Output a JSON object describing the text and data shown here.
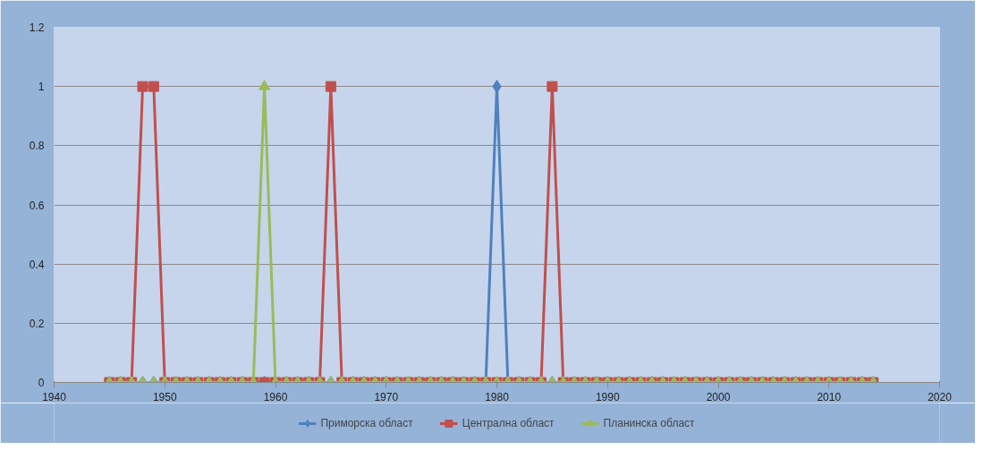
{
  "chart_data": {
    "type": "line",
    "x": [
      1945,
      1946,
      1947,
      1948,
      1949,
      1950,
      1951,
      1952,
      1953,
      1954,
      1955,
      1956,
      1957,
      1958,
      1959,
      1960,
      1961,
      1962,
      1963,
      1964,
      1965,
      1966,
      1967,
      1968,
      1969,
      1970,
      1971,
      1972,
      1973,
      1974,
      1975,
      1976,
      1977,
      1978,
      1979,
      1980,
      1981,
      1982,
      1983,
      1984,
      1985,
      1986,
      1987,
      1988,
      1989,
      1990,
      1991,
      1992,
      1993,
      1994,
      1995,
      1996,
      1997,
      1998,
      1999,
      2000,
      2001,
      2002,
      2003,
      2004,
      2005,
      2006,
      2007,
      2008,
      2009,
      2010,
      2011,
      2012,
      2013,
      2014
    ],
    "series": [
      {
        "name": "Приморска област",
        "color": "#4f81bd",
        "marker": "diamond",
        "values": [
          0,
          0,
          0,
          0,
          0,
          0,
          0,
          0,
          0,
          0,
          0,
          0,
          0,
          0,
          0,
          0,
          0,
          0,
          0,
          0,
          0,
          0,
          0,
          0,
          0,
          0,
          0,
          0,
          0,
          0,
          0,
          0,
          0,
          0,
          0,
          1,
          0,
          0,
          0,
          0,
          0,
          0,
          0,
          0,
          0,
          0,
          0,
          0,
          0,
          0,
          0,
          0,
          0,
          0,
          0,
          0,
          0,
          0,
          0,
          0,
          0,
          0,
          0,
          0,
          0,
          0,
          0,
          0,
          0,
          0
        ]
      },
      {
        "name": "Централна област",
        "color": "#c0504d",
        "marker": "square",
        "values": [
          0,
          0,
          0,
          1,
          1,
          0,
          0,
          0,
          0,
          0,
          0,
          0,
          0,
          0,
          0,
          0,
          0,
          0,
          0,
          0,
          1,
          0,
          0,
          0,
          0,
          0,
          0,
          0,
          0,
          0,
          0,
          0,
          0,
          0,
          0,
          0,
          0,
          0,
          0,
          0,
          1,
          0,
          0,
          0,
          0,
          0,
          0,
          0,
          0,
          0,
          0,
          0,
          0,
          0,
          0,
          0,
          0,
          0,
          0,
          0,
          0,
          0,
          0,
          0,
          0,
          0,
          0,
          0,
          0,
          0
        ]
      },
      {
        "name": "Планинска област",
        "color": "#9bbb59",
        "marker": "triangle",
        "values": [
          0,
          0,
          0,
          0,
          0,
          0,
          0,
          0,
          0,
          0,
          0,
          0,
          0,
          0,
          1,
          0,
          0,
          0,
          0,
          0,
          0,
          0,
          0,
          0,
          0,
          0,
          0,
          0,
          0,
          0,
          0,
          0,
          0,
          0,
          0,
          0,
          0,
          0,
          0,
          0,
          0,
          0,
          0,
          0,
          0,
          0,
          0,
          0,
          0,
          0,
          0,
          0,
          0,
          0,
          0,
          0,
          0,
          0,
          0,
          0,
          0,
          0,
          0,
          0,
          0,
          0,
          0,
          0,
          0,
          0
        ]
      }
    ],
    "xlim": [
      1940,
      2020
    ],
    "xticks": [
      1940,
      1950,
      1960,
      1970,
      1980,
      1990,
      2000,
      2010,
      2020
    ],
    "ylim": [
      0,
      1.2
    ],
    "yticks": [
      0,
      0.2,
      0.4,
      0.6,
      0.8,
      1,
      1.2
    ],
    "grid": "y",
    "legend": "bottom",
    "line_style": "solid"
  }
}
